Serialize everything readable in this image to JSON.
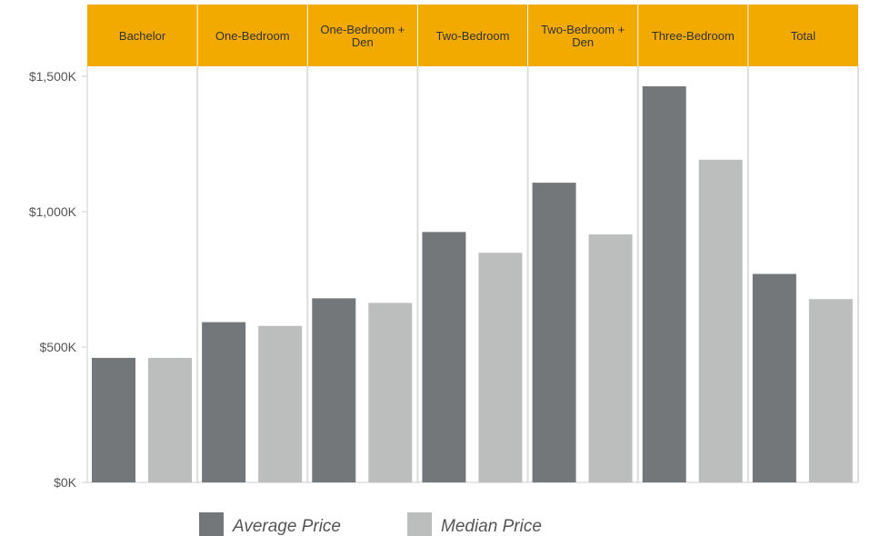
{
  "chart_data": {
    "type": "bar",
    "categories": [
      [
        "Bachelor"
      ],
      [
        "One-Bedroom"
      ],
      [
        "One-Bedroom +",
        "Den"
      ],
      [
        "Two-Bedroom"
      ],
      [
        "Two-Bedroom +",
        "Den"
      ],
      [
        "Three-Bedroom"
      ],
      [
        "Total"
      ]
    ],
    "series": [
      {
        "name": "Average Price",
        "color": "#74777a",
        "values": [
          460,
          592,
          680,
          925,
          1107,
          1463,
          770
        ]
      },
      {
        "name": "Median Price",
        "color": "#bcbdbd",
        "values": [
          460,
          578,
          663,
          848,
          916,
          1192,
          677
        ]
      }
    ],
    "yticks": [
      {
        "value": 0,
        "label": "$0K"
      },
      {
        "value": 500,
        "label": "$500K"
      },
      {
        "value": 1000,
        "label": "$1,000K"
      },
      {
        "value": 1500,
        "label": "$1,500K"
      }
    ],
    "ylim": [
      0,
      1500
    ],
    "header_color": "#f2a900",
    "grid": false,
    "legend_position": "bottom"
  }
}
